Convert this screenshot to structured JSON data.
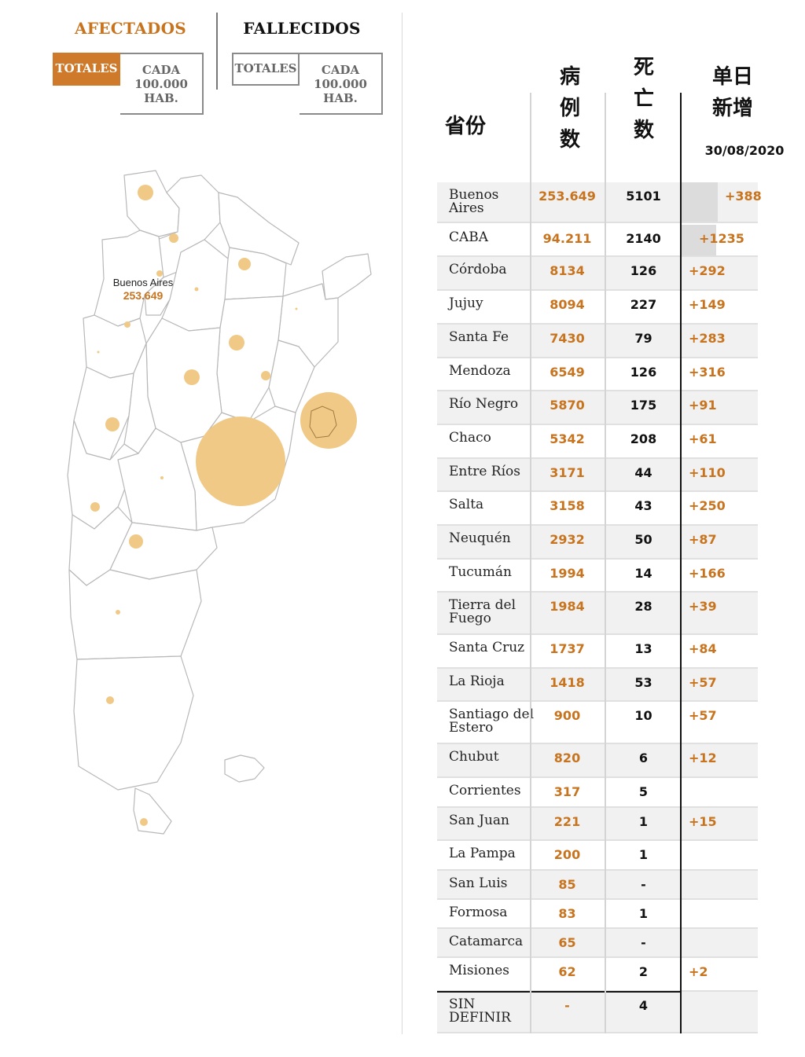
{
  "tabs": {
    "afectados": "AFECTADOS",
    "fallecidos": "FALLECIDOS",
    "totales": "TOTALES",
    "per_capita_line1": "CADA",
    "per_capita_line2": "100.000",
    "per_capita_line3": "HAB."
  },
  "map": {
    "label_name": "Buenos Aires",
    "label_value": "253.649",
    "bubble_color": "#f0c987",
    "outline_color": "#bbbbbb"
  },
  "table": {
    "headers": {
      "province": "省份",
      "cases_1": "病",
      "cases_2": "例",
      "cases_3": "数",
      "deaths_1": "死",
      "deaths_2": "亡",
      "deaths_3": "数",
      "daily_1": "单日",
      "daily_2": "新增",
      "date": "30/08/2020"
    },
    "accent_color": "#c8741f",
    "rows": [
      {
        "name": "Buenos Aires",
        "cases": "253.649",
        "deaths": "5101",
        "daily": "+388",
        "daily_value": 388
      },
      {
        "name": "CABA",
        "cases": "94.211",
        "deaths": "2140",
        "daily": "+1235",
        "daily_value": 1235
      },
      {
        "name": "Córdoba",
        "cases": "8134",
        "deaths": "126",
        "daily": "+292",
        "daily_value": 292
      },
      {
        "name": "Jujuy",
        "cases": "8094",
        "deaths": "227",
        "daily": "+149",
        "daily_value": 149
      },
      {
        "name": "Santa Fe",
        "cases": "7430",
        "deaths": "79",
        "daily": "+283",
        "daily_value": 283
      },
      {
        "name": "Mendoza",
        "cases": "6549",
        "deaths": "126",
        "daily": "+316",
        "daily_value": 316
      },
      {
        "name": "Río Negro",
        "cases": "5870",
        "deaths": "175",
        "daily": "+91",
        "daily_value": 91
      },
      {
        "name": "Chaco",
        "cases": "5342",
        "deaths": "208",
        "daily": "+61",
        "daily_value": 61
      },
      {
        "name": "Entre Ríos",
        "cases": "3171",
        "deaths": "44",
        "daily": "+110",
        "daily_value": 110
      },
      {
        "name": "Salta",
        "cases": "3158",
        "deaths": "43",
        "daily": "+250",
        "daily_value": 250
      },
      {
        "name": "Neuquén",
        "cases": "2932",
        "deaths": "50",
        "daily": "+87",
        "daily_value": 87
      },
      {
        "name": "Tucumán",
        "cases": "1994",
        "deaths": "14",
        "daily": "+166",
        "daily_value": 166
      },
      {
        "name": "Tierra del Fuego",
        "cases": "1984",
        "deaths": "28",
        "daily": "+39",
        "daily_value": 39
      },
      {
        "name": "Santa Cruz",
        "cases": "1737",
        "deaths": "13",
        "daily": "+84",
        "daily_value": 84
      },
      {
        "name": "La Rioja",
        "cases": "1418",
        "deaths": "53",
        "daily": "+57",
        "daily_value": 57
      },
      {
        "name": "Santiago del Estero",
        "cases": "900",
        "deaths": "10",
        "daily": "+57",
        "daily_value": 57
      },
      {
        "name": "Chubut",
        "cases": "820",
        "deaths": "6",
        "daily": "+12",
        "daily_value": 12
      },
      {
        "name": "Corrientes",
        "cases": "317",
        "deaths": "5",
        "daily": "",
        "daily_value": 0
      },
      {
        "name": "San Juan",
        "cases": "221",
        "deaths": "1",
        "daily": "+15",
        "daily_value": 15
      },
      {
        "name": "La Pampa",
        "cases": "200",
        "deaths": "1",
        "daily": "",
        "daily_value": 0
      },
      {
        "name": "San Luis",
        "cases": "85",
        "deaths": "-",
        "daily": "",
        "daily_value": 0
      },
      {
        "name": "Formosa",
        "cases": "83",
        "deaths": "1",
        "daily": "",
        "daily_value": 0
      },
      {
        "name": "Catamarca",
        "cases": "65",
        "deaths": "-",
        "daily": "",
        "daily_value": 0
      },
      {
        "name": "Misiones",
        "cases": "62",
        "deaths": "2",
        "daily": "+2",
        "daily_value": 2
      },
      {
        "name": "SIN DEFINIR",
        "cases": "-",
        "deaths": "4",
        "daily": "",
        "daily_value": 0
      }
    ]
  }
}
